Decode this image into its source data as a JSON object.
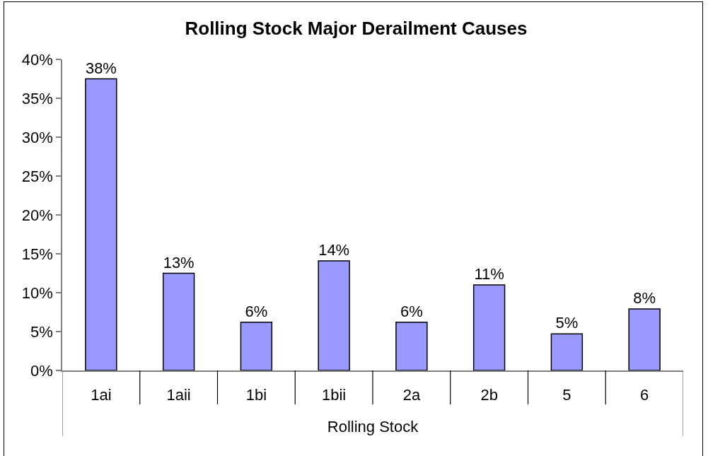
{
  "chart_data": {
    "type": "bar",
    "title": "Rolling Stock Major Derailment Causes",
    "xlabel": "Rolling Stock",
    "categories": [
      "1ai",
      "1aii",
      "1bi",
      "1bii",
      "2a",
      "2b",
      "5",
      "6"
    ],
    "values": [
      37.5,
      12.5,
      6.2,
      14.1,
      6.2,
      11.0,
      4.7,
      7.9
    ],
    "value_labels": [
      "38%",
      "13%",
      "6%",
      "14%",
      "6%",
      "11%",
      "5%",
      "8%"
    ],
    "color": "#9999ff",
    "ylim": [
      0,
      40
    ],
    "yticks": [
      {
        "value": 0,
        "label": "0%"
      },
      {
        "value": 5,
        "label": "5%"
      },
      {
        "value": 10,
        "label": "10%"
      },
      {
        "value": 15,
        "label": "15%"
      },
      {
        "value": 20,
        "label": "20%"
      },
      {
        "value": 25,
        "label": "25%"
      },
      {
        "value": 30,
        "label": "30%"
      },
      {
        "value": 35,
        "label": "35%"
      },
      {
        "value": 40,
        "label": "40%"
      }
    ]
  }
}
